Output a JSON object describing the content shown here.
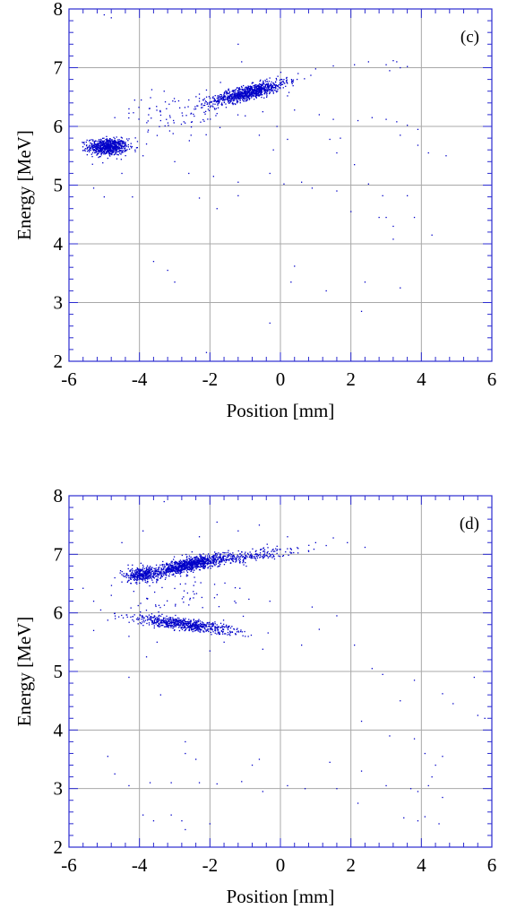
{
  "colors": {
    "points": "#0000c8",
    "frame": "#2b2bd0",
    "grid": "#a8a8a8",
    "text": "#000000"
  },
  "chart_data": [
    {
      "type": "scatter",
      "panel_label": "(c)",
      "xlabel": "Position [mm]",
      "ylabel": "Energy [MeV]",
      "xlim": [
        -6,
        6
      ],
      "ylim": [
        2,
        8
      ],
      "xticks": [
        "-6",
        "-4",
        "-2",
        "0",
        "2",
        "4",
        "6"
      ],
      "yticks": [
        "2",
        "3",
        "4",
        "5",
        "6",
        "7",
        "8"
      ],
      "grid": true,
      "series": [
        {
          "clusters": [
            {
              "cx": -4.9,
              "cy": 5.65,
              "sx": 0.28,
              "sy": 0.07,
              "n": 700
            },
            {
              "cx": -0.9,
              "cy": 6.58,
              "sx": 0.55,
              "sy": 0.06,
              "n": 900,
              "slope": 0.15
            },
            {
              "cx": -3.0,
              "cy": 6.2,
              "sx": 0.7,
              "sy": 0.18,
              "n": 80
            }
          ],
          "points": [
            [
              -4.7,
              6.15
            ],
            [
              -3.3,
              6.6
            ],
            [
              -2.6,
              6.45
            ],
            [
              -2.3,
              6.55
            ],
            [
              -1.7,
              6.75
            ],
            [
              0.1,
              6.8
            ],
            [
              0.5,
              6.9
            ],
            [
              1.0,
              6.98
            ],
            [
              1.5,
              7.03
            ],
            [
              2.1,
              7.05
            ],
            [
              2.5,
              7.1
            ],
            [
              3.0,
              7.05
            ],
            [
              3.3,
              7.1
            ],
            [
              3.4,
              7.0
            ],
            [
              3.2,
              7.12
            ],
            [
              3.1,
              6.95
            ],
            [
              3.6,
              7.02
            ],
            [
              -1.8,
              6.22
            ],
            [
              -1.0,
              6.18
            ],
            [
              -0.5,
              6.25
            ],
            [
              0.4,
              6.28
            ],
            [
              1.1,
              6.2
            ],
            [
              1.5,
              6.12
            ],
            [
              2.2,
              6.1
            ],
            [
              2.6,
              6.15
            ],
            [
              3.0,
              6.12
            ],
            [
              3.3,
              6.08
            ],
            [
              3.6,
              6.02
            ],
            [
              3.9,
              5.95
            ],
            [
              3.4,
              5.85
            ],
            [
              1.7,
              5.8
            ],
            [
              1.4,
              5.78
            ],
            [
              -0.6,
              5.85
            ],
            [
              -0.2,
              5.6
            ],
            [
              0.2,
              5.78
            ],
            [
              2.1,
              5.35
            ],
            [
              3.9,
              5.68
            ],
            [
              4.2,
              5.55
            ],
            [
              4.7,
              5.5
            ],
            [
              -3.9,
              5.5
            ],
            [
              -3.0,
              5.4
            ],
            [
              -2.6,
              5.2
            ],
            [
              -1.9,
              5.15
            ],
            [
              -1.2,
              5.05
            ],
            [
              -0.3,
              5.2
            ],
            [
              0.1,
              5.02
            ],
            [
              0.6,
              5.05
            ],
            [
              1.6,
              4.9
            ],
            [
              2.9,
              4.82
            ],
            [
              3.6,
              4.82
            ],
            [
              -5.3,
              4.95
            ],
            [
              -5.0,
              4.8
            ],
            [
              -4.2,
              4.8
            ],
            [
              -2.3,
              4.78
            ],
            [
              -1.2,
              4.82
            ],
            [
              -1.8,
              4.6
            ],
            [
              0.9,
              4.95
            ],
            [
              2.0,
              4.55
            ],
            [
              2.8,
              4.45
            ],
            [
              3.2,
              4.3
            ],
            [
              3.0,
              4.45
            ],
            [
              3.8,
              4.45
            ],
            [
              4.3,
              4.15
            ],
            [
              3.2,
              4.08
            ],
            [
              -3.6,
              3.7
            ],
            [
              -3.2,
              3.55
            ],
            [
              -3.0,
              3.35
            ],
            [
              0.4,
              3.62
            ],
            [
              0.3,
              3.35
            ],
            [
              1.3,
              3.2
            ],
            [
              2.4,
              3.35
            ],
            [
              3.4,
              3.25
            ],
            [
              -2.1,
              2.15
            ],
            [
              2.3,
              2.85
            ],
            [
              -0.3,
              2.65
            ],
            [
              -5.0,
              7.9
            ],
            [
              -4.8,
              7.85
            ],
            [
              -1.2,
              7.4
            ],
            [
              -1.1,
              7.1
            ],
            [
              -3.4,
              6.1
            ],
            [
              -3.8,
              5.7
            ],
            [
              -4.3,
              6.3
            ],
            [
              -2.1,
              6.62
            ],
            [
              0.2,
              6.52
            ],
            [
              -0.1,
              6.0
            ],
            [
              1.6,
              5.55
            ],
            [
              2.5,
              5.02
            ],
            [
              -4.5,
              5.2
            ]
          ]
        }
      ]
    },
    {
      "type": "scatter",
      "panel_label": "(d)",
      "xlabel": "Position [mm]",
      "ylabel": "Energy [MeV]",
      "xlim": [
        -6,
        6
      ],
      "ylim": [
        2,
        8
      ],
      "xticks": [
        "-6",
        "-4",
        "-2",
        "0",
        "2",
        "4",
        "6"
      ],
      "yticks": [
        "2",
        "3",
        "4",
        "5",
        "6",
        "7",
        "8"
      ],
      "grid": true,
      "series": [
        {
          "clusters": [
            {
              "cx": -2.6,
              "cy": 6.82,
              "sx": 0.55,
              "sy": 0.06,
              "n": 900,
              "slope": 0.12
            },
            {
              "cx": -3.9,
              "cy": 6.65,
              "sx": 0.25,
              "sy": 0.06,
              "n": 350
            },
            {
              "cx": -2.7,
              "cy": 5.8,
              "sx": 0.75,
              "sy": 0.05,
              "n": 650,
              "slope": -0.08
            },
            {
              "cx": -0.8,
              "cy": 6.98,
              "sx": 0.65,
              "sy": 0.05,
              "n": 200,
              "slope": 0.08
            },
            {
              "cx": -2.8,
              "cy": 6.3,
              "sx": 0.9,
              "sy": 0.25,
              "n": 60
            }
          ],
          "points": [
            [
              0.3,
              7.02
            ],
            [
              0.8,
              7.05
            ],
            [
              1.0,
              7.2
            ],
            [
              1.3,
              7.15
            ],
            [
              1.5,
              7.28
            ],
            [
              1.9,
              7.2
            ],
            [
              2.4,
              7.12
            ],
            [
              0.2,
              7.3
            ],
            [
              -0.6,
              7.5
            ],
            [
              -1.2,
              7.4
            ],
            [
              -1.8,
              7.55
            ],
            [
              -2.3,
              7.3
            ],
            [
              -3.9,
              7.4
            ],
            [
              -3.3,
              7.9
            ],
            [
              -4.5,
              7.2
            ],
            [
              -4.7,
              6.6
            ],
            [
              -4.8,
              6.3
            ],
            [
              -5.1,
              6.05
            ],
            [
              -5.3,
              5.7
            ],
            [
              -1.0,
              5.6
            ],
            [
              -0.5,
              5.38
            ],
            [
              0.6,
              5.45
            ],
            [
              1.6,
              5.95
            ],
            [
              1.1,
              5.72
            ],
            [
              2.1,
              5.45
            ],
            [
              2.6,
              5.05
            ],
            [
              2.9,
              4.95
            ],
            [
              3.4,
              4.5
            ],
            [
              3.8,
              4.85
            ],
            [
              4.6,
              4.62
            ],
            [
              4.9,
              4.45
            ],
            [
              5.6,
              4.25
            ],
            [
              5.5,
              4.9
            ],
            [
              2.3,
              4.15
            ],
            [
              3.1,
              3.9
            ],
            [
              3.8,
              3.85
            ],
            [
              4.1,
              3.6
            ],
            [
              4.4,
              3.4
            ],
            [
              4.6,
              3.55
            ],
            [
              4.3,
              3.2
            ],
            [
              4.2,
              3.05
            ],
            [
              3.9,
              2.95
            ],
            [
              4.6,
              2.85
            ],
            [
              -4.9,
              3.55
            ],
            [
              -4.7,
              3.25
            ],
            [
              -4.3,
              3.05
            ],
            [
              -3.7,
              3.1
            ],
            [
              -3.1,
              3.1
            ],
            [
              -2.3,
              3.1
            ],
            [
              -1.8,
              3.08
            ],
            [
              -1.1,
              3.12
            ],
            [
              -2.7,
              3.8
            ],
            [
              -2.7,
              3.6
            ],
            [
              -0.6,
              3.5
            ],
            [
              0.2,
              3.05
            ],
            [
              -0.5,
              2.95
            ],
            [
              0.7,
              3.0
            ],
            [
              1.6,
              3.0
            ],
            [
              2.2,
              2.75
            ],
            [
              3.0,
              3.05
            ],
            [
              3.7,
              3.0
            ],
            [
              -3.9,
              2.55
            ],
            [
              -3.6,
              2.45
            ],
            [
              -3.1,
              2.55
            ],
            [
              -2.8,
              2.45
            ],
            [
              -2.0,
              2.4
            ],
            [
              -2.7,
              2.3
            ],
            [
              3.5,
              2.5
            ],
            [
              3.9,
              2.45
            ],
            [
              4.1,
              2.52
            ],
            [
              4.5,
              2.4
            ],
            [
              5.8,
              4.2
            ],
            [
              -0.3,
              6.2
            ],
            [
              -1.3,
              6.2
            ],
            [
              0.9,
              6.1
            ],
            [
              -5.6,
              6.42
            ],
            [
              -5.3,
              6.2
            ],
            [
              -4.3,
              5.6
            ],
            [
              -3.5,
              5.5
            ],
            [
              -2.0,
              5.35
            ],
            [
              -1.6,
              5.5
            ],
            [
              -3.8,
              5.25
            ],
            [
              -4.3,
              4.9
            ],
            [
              -3.4,
              4.6
            ],
            [
              -2.4,
              3.5
            ],
            [
              -0.8,
              3.4
            ],
            [
              2.3,
              3.3
            ],
            [
              1.4,
              3.45
            ]
          ]
        }
      ]
    }
  ]
}
